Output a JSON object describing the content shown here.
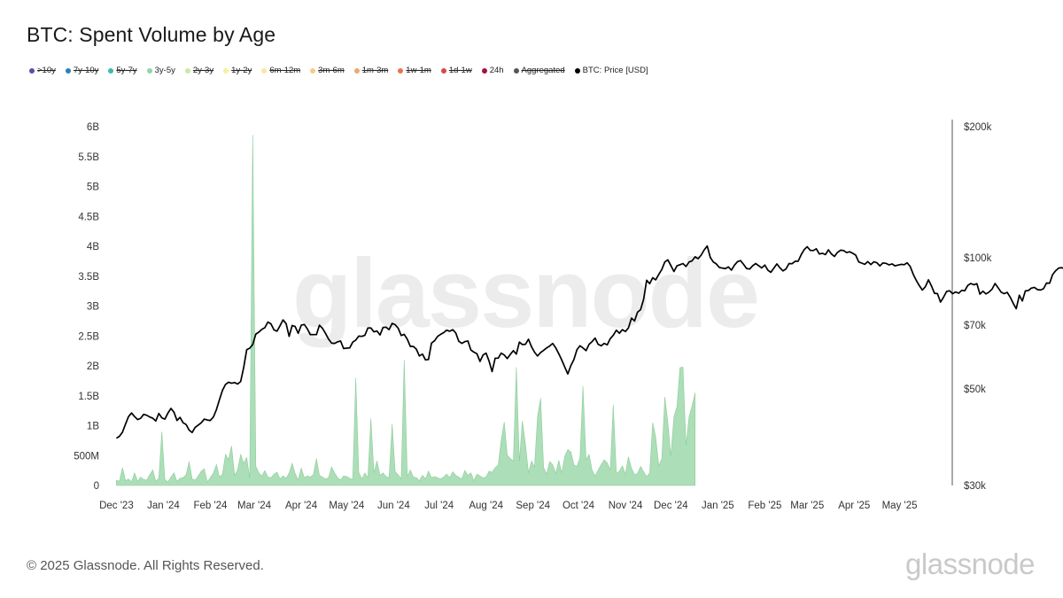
{
  "header": {
    "title": "BTC: Spent Volume by Age"
  },
  "legend": [
    {
      "label": ">10y",
      "color": "#5b4fa3",
      "active": false
    },
    {
      "label": "7y-10y",
      "color": "#2b7fb8",
      "active": false
    },
    {
      "label": "5y-7y",
      "color": "#3fb6b0",
      "active": false
    },
    {
      "label": "3y-5y",
      "color": "#8fd6a3",
      "active": true
    },
    {
      "label": "2y-3y",
      "color": "#cde8a2",
      "active": false
    },
    {
      "label": "1y-2y",
      "color": "#f3f0a0",
      "active": false
    },
    {
      "label": "6m-12m",
      "color": "#fbe7a5",
      "active": false
    },
    {
      "label": "3m-6m",
      "color": "#f8c98a",
      "active": false
    },
    {
      "label": "1m-3m",
      "color": "#f3a76a",
      "active": false
    },
    {
      "label": "1w-1m",
      "color": "#e8744e",
      "active": false
    },
    {
      "label": "1d-1w",
      "color": "#d9494a",
      "active": false
    },
    {
      "label": "24h",
      "color": "#a3133a",
      "active": true
    },
    {
      "label": "Aggregated",
      "color": "#555555",
      "active": false
    },
    {
      "label": "BTC: Price [USD]",
      "color": "#000000",
      "active": true
    }
  ],
  "watermark": "glassnode",
  "footer": {
    "copyright": "© 2025 Glassnode. All Rights Reserved.",
    "brand": "glassnode"
  },
  "colors": {
    "volume": "#a8dcb3",
    "volume_stroke": "#8ccd9b",
    "price": "#000000"
  },
  "chart_data": {
    "type": "area",
    "title": "BTC: Spent Volume by Age",
    "x_ticks": [
      "Dec '23",
      "Jan '24",
      "Feb '24",
      "Mar '24",
      "Apr '24",
      "May '24",
      "Jun '24",
      "Jul '24",
      "Aug '24",
      "Sep '24",
      "Oct '24",
      "Nov '24",
      "Dec '24",
      "Jan '25",
      "Feb '25",
      "Mar '25",
      "Apr '25",
      "May '25"
    ],
    "y_left": {
      "ticks": [
        "0",
        "500M",
        "1B",
        "1.5B",
        "2B",
        "2.5B",
        "3B",
        "3.5B",
        "4B",
        "4.5B",
        "5B",
        "5.5B",
        "6B"
      ],
      "range": [
        0,
        6000000000
      ]
    },
    "y_right": {
      "ticks": [
        "$30k",
        "$50k",
        "$70k",
        "$100k",
        "$200k"
      ],
      "tick_values": [
        30000,
        50000,
        70000,
        100000,
        200000
      ],
      "scale": "log",
      "range": [
        30000,
        200000
      ]
    },
    "series": [
      {
        "name": "3y-5y",
        "type": "area",
        "axis": "left",
        "start": "2023-12-01",
        "days_step": 2,
        "values": [
          90,
          70,
          300,
          80,
          110,
          60,
          210,
          70,
          140,
          100,
          90,
          180,
          260,
          70,
          120,
          900,
          100,
          60,
          140,
          210,
          70,
          120,
          130,
          180,
          400,
          110,
          90,
          160,
          240,
          280,
          60,
          130,
          210,
          350,
          140,
          190,
          520,
          430,
          660,
          170,
          260,
          520,
          370,
          470,
          120,
          5860,
          320,
          210,
          160,
          250,
          140,
          130,
          190,
          220,
          110,
          160,
          120,
          210,
          370,
          200,
          90,
          290,
          130,
          160,
          140,
          180,
          450,
          170,
          140,
          110,
          130,
          310,
          210,
          130,
          90,
          160,
          150,
          120,
          100,
          1800,
          220,
          110,
          210,
          130,
          1120,
          210,
          410,
          170,
          210,
          150,
          130,
          1030,
          230,
          180,
          110,
          2100,
          150,
          260,
          140,
          130,
          80,
          170,
          110,
          240,
          130,
          150,
          130,
          110,
          140,
          190,
          130,
          230,
          170,
          140,
          110,
          250,
          170,
          210,
          80,
          190,
          160,
          130,
          140,
          240,
          220,
          300,
          340,
          760,
          1060,
          510,
          450,
          410,
          1980,
          400,
          1080,
          690,
          210,
          410,
          310,
          1150,
          1460,
          300,
          190,
          400,
          350,
          200,
          420,
          210,
          490,
          600,
          560,
          340,
          320,
          460,
          1660,
          430,
          520,
          260,
          160,
          260,
          350,
          430,
          380,
          260,
          1350,
          200,
          240,
          330,
          190,
          480,
          290,
          180,
          200,
          320,
          230,
          150,
          210,
          1050,
          810,
          330,
          450,
          1480,
          1060,
          490,
          1150,
          1320,
          1970,
          1980,
          670,
          1150,
          1330,
          1550
        ]
      },
      {
        "name": "BTC: Price [USD]",
        "type": "line",
        "axis": "right",
        "start": "2023-12-01",
        "days_step": 2,
        "values": [
          38500,
          38900,
          39800,
          41500,
          43200,
          44000,
          43200,
          42500,
          42800,
          43700,
          43500,
          43100,
          42800,
          42200,
          43900,
          42900,
          42600,
          44000,
          45100,
          44200,
          42300,
          43000,
          41800,
          41400,
          40200,
          39700,
          40800,
          41300,
          41800,
          42600,
          42400,
          42300,
          43100,
          44800,
          47200,
          49600,
          51200,
          51800,
          51500,
          51700,
          51300,
          52000,
          56000,
          61500,
          62000,
          63200,
          66800,
          67500,
          68500,
          69100,
          71200,
          70500,
          68300,
          67800,
          69800,
          72000,
          70600,
          66000,
          69900,
          69500,
          67100,
          70000,
          70300,
          68700,
          66600,
          66600,
          66600,
          70000,
          68900,
          67100,
          65100,
          63700,
          63600,
          64100,
          64400,
          61900,
          62000,
          62100,
          64000,
          64700,
          66100,
          66000,
          66400,
          69000,
          69000,
          67600,
          67900,
          66500,
          69200,
          69300,
          68400,
          70700,
          70200,
          68900,
          66300,
          66700,
          65000,
          62600,
          62600,
          61700,
          59500,
          60100,
          58300,
          58400,
          63700,
          64500,
          66000,
          66700,
          67300,
          68200,
          67800,
          68400,
          67200,
          64300,
          63600,
          64200,
          64400,
          61400,
          60700,
          60200,
          57800,
          59800,
          60400,
          57900,
          54800,
          58800,
          58800,
          60400,
          59800,
          58700,
          60000,
          61200,
          60100,
          64000,
          63200,
          63300,
          65000,
          62500,
          60700,
          59500,
          60600,
          61300,
          62100,
          62700,
          63600,
          62100,
          60200,
          58200,
          56100,
          54100,
          56600,
          58400,
          61500,
          62800,
          62100,
          61200,
          63300,
          64200,
          65400,
          63300,
          62800,
          63600,
          63100,
          65200,
          66400,
          68200,
          67100,
          68400,
          67700,
          69000,
          72700,
          71600,
          75000,
          76000,
          80300,
          88800,
          87200,
          90000,
          89000,
          91600,
          94000,
          97800,
          98900,
          96000,
          93000,
          95800,
          96400,
          97000,
          95500,
          97800,
          98400,
          100500,
          99500,
          101400,
          104300,
          106400,
          100200,
          97800,
          96800,
          95000,
          94700,
          94500,
          95300,
          93700,
          96200,
          98000,
          98500,
          96600,
          94500,
          94200,
          95900,
          97000,
          95900,
          94800,
          96200,
          93700,
          92600,
          94700,
          96800,
          94800,
          93300,
          94300,
          97000,
          96900,
          98200,
          98200,
          101600,
          104400,
          106000,
          104000,
          103900,
          104900,
          102000,
          102400,
          101700,
          104300,
          102000,
          100700,
          102900,
          104100,
          103900,
          102800,
          103200,
          102400,
          101400,
          97800,
          97200,
          96600,
          98000,
          96500,
          97900,
          97400,
          95800,
          97300,
          97100,
          96300,
          96800,
          95800,
          96200,
          96600,
          96400,
          97400,
          95500,
          91600,
          88700,
          86300,
          84300,
          85800,
          89000,
          86200,
          82900,
          82700,
          79100,
          81200,
          83700,
          84000,
          82700,
          83500,
          82900,
          84200,
          84000,
          86400,
          87300,
          86700,
          87200,
          82500,
          83800,
          82600,
          83400,
          84700,
          87300,
          85400,
          83400,
          82700,
          83300,
          81200,
          78600,
          76400,
          82000,
          79600,
          83900,
          84100,
          85200,
          85500,
          84500,
          84300,
          84900,
          87500,
          87400,
          91500,
          93400,
          94700,
          94900,
          94200,
          95000,
          96500,
          94300,
          94300,
          96900,
          97000,
          96800,
          102700,
          103400,
          103500,
          104600,
          102800,
          103000,
          103500,
          103700,
          103500,
          106500,
          109600,
          107300,
          108600,
          110600,
          107700,
          108900,
          107800,
          109400,
          107500,
          106000,
          108200,
          109100,
          108700
        ]
      }
    ],
    "grid": false,
    "legend_position": "top-left"
  }
}
